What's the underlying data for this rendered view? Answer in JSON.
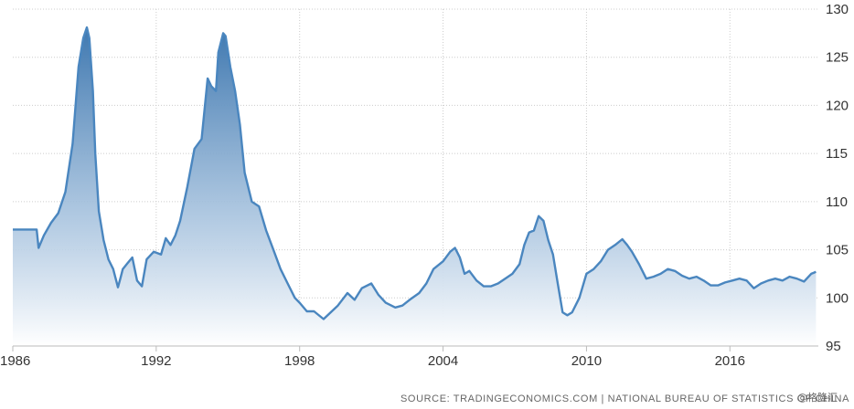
{
  "chart_data": {
    "type": "area",
    "title": "",
    "xlabel": "",
    "ylabel": "",
    "x_ticks": [
      "1986",
      "1992",
      "1998",
      "2004",
      "2010",
      "2016"
    ],
    "y_ticks": [
      95,
      100,
      105,
      110,
      115,
      120,
      125,
      130
    ],
    "xlim": [
      1986,
      2019.7
    ],
    "ylim": [
      95,
      130
    ],
    "grid": true,
    "colors": {
      "line": "#4a86bf",
      "fill_top": "#3f78b0",
      "fill_bottom": "#ffffff",
      "grid": "#cccccc",
      "axis": "#bbbbbb"
    },
    "series": [
      {
        "x": [
          1986.0,
          1986.4,
          1986.8,
          1987.0,
          1987.08,
          1987.3,
          1987.6,
          1987.9,
          1988.2,
          1988.5,
          1988.75,
          1988.95,
          1989.1,
          1989.2,
          1989.35,
          1989.45,
          1989.6,
          1989.8,
          1990.0,
          1990.2,
          1990.4,
          1990.5,
          1990.6,
          1990.8,
          1991.0,
          1991.2,
          1991.4,
          1991.6,
          1991.9,
          1992.2,
          1992.4,
          1992.6,
          1992.8,
          1993.0,
          1993.3,
          1993.6,
          1993.9,
          1994.15,
          1994.3,
          1994.5,
          1994.6,
          1994.8,
          1994.9,
          1995.1,
          1995.3,
          1995.5,
          1995.7,
          1996.0,
          1996.3,
          1996.6,
          1996.9,
          1997.2,
          1997.5,
          1997.8,
          1998.0,
          1998.3,
          1998.6,
          1999.0,
          1999.3,
          1999.6,
          2000.0,
          2000.3,
          2000.6,
          2001.0,
          2001.3,
          2001.6,
          2002.0,
          2002.3,
          2002.6,
          2003.0,
          2003.3,
          2003.6,
          2004.0,
          2004.3,
          2004.5,
          2004.7,
          2004.9,
          2005.1,
          2005.4,
          2005.7,
          2006.0,
          2006.3,
          2006.6,
          2006.9,
          2007.2,
          2007.4,
          2007.6,
          2007.8,
          2008.0,
          2008.2,
          2008.4,
          2008.6,
          2008.8,
          2009.0,
          2009.2,
          2009.4,
          2009.7,
          2010.0,
          2010.3,
          2010.6,
          2010.9,
          2011.2,
          2011.5,
          2011.7,
          2011.9,
          2012.2,
          2012.5,
          2012.8,
          2013.1,
          2013.4,
          2013.7,
          2014.0,
          2014.3,
          2014.6,
          2014.9,
          2015.2,
          2015.5,
          2015.8,
          2016.1,
          2016.4,
          2016.7,
          2017.0,
          2017.3,
          2017.6,
          2017.9,
          2018.2,
          2018.5,
          2018.8,
          2019.1,
          2019.4,
          2019.6
        ],
        "y": [
          107.1,
          107.1,
          107.1,
          107.1,
          105.2,
          106.5,
          107.8,
          108.8,
          111.0,
          116.0,
          124.0,
          127.0,
          128.1,
          127.0,
          121.5,
          115.0,
          109.0,
          106.0,
          104.0,
          103.0,
          101.1,
          102.0,
          103.0,
          103.6,
          104.2,
          101.8,
          101.2,
          104.0,
          104.8,
          104.5,
          106.2,
          105.5,
          106.5,
          108.0,
          111.5,
          115.5,
          116.5,
          122.8,
          122.0,
          121.5,
          125.5,
          127.5,
          127.2,
          124.0,
          121.5,
          118.0,
          113.0,
          110.0,
          109.5,
          107.0,
          105.0,
          103.0,
          101.5,
          100.0,
          99.5,
          98.6,
          98.6,
          97.8,
          98.5,
          99.2,
          100.5,
          99.8,
          101.0,
          101.5,
          100.3,
          99.5,
          99.0,
          99.2,
          99.8,
          100.5,
          101.5,
          103.0,
          103.8,
          104.8,
          105.2,
          104.2,
          102.5,
          102.8,
          101.8,
          101.2,
          101.2,
          101.5,
          102.0,
          102.5,
          103.5,
          105.5,
          106.8,
          107.0,
          108.5,
          108.0,
          106.0,
          104.5,
          101.5,
          98.5,
          98.2,
          98.5,
          100.0,
          102.5,
          103.0,
          103.8,
          105.0,
          105.5,
          106.1,
          105.5,
          104.8,
          103.5,
          102.0,
          102.2,
          102.5,
          103.0,
          102.8,
          102.3,
          102.0,
          102.2,
          101.8,
          101.3,
          101.3,
          101.6,
          101.8,
          102.0,
          101.8,
          101.0,
          101.5,
          101.8,
          102.0,
          101.8,
          102.2,
          102.0,
          101.7,
          102.5,
          102.7
        ]
      }
    ]
  },
  "footer": {
    "source": "SOURCE: TRADINGECONOMICS.COM | NATIONAL BUREAU OF STATISTICS OF CHINA",
    "watermark": "@格隆汇"
  }
}
